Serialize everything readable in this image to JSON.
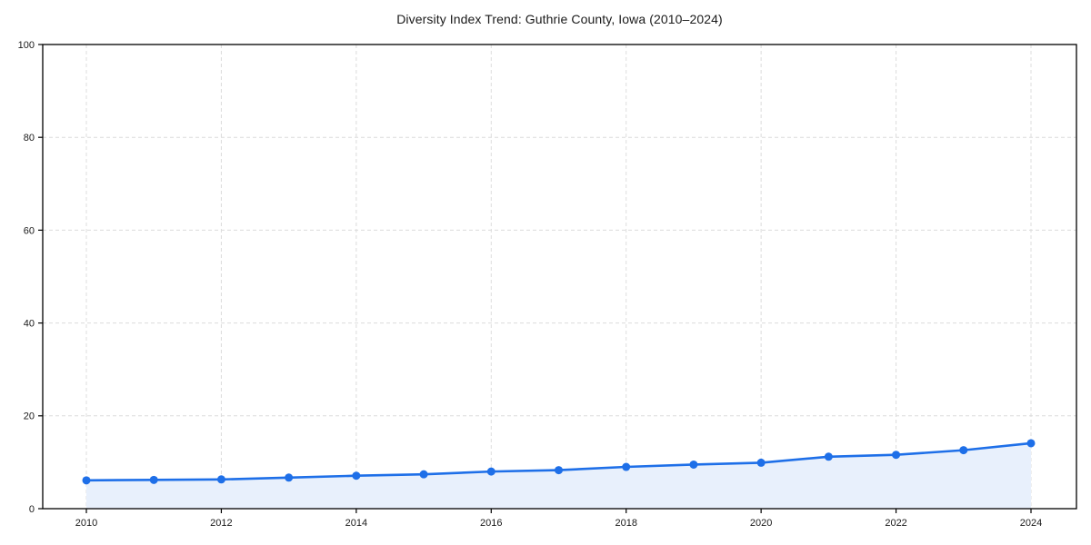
{
  "chart_data": {
    "type": "line",
    "area_fill": true,
    "title": "Diversity Index Trend: Guthrie County, Iowa (2010–2024)",
    "x": [
      2010,
      2011,
      2012,
      2013,
      2014,
      2015,
      2016,
      2017,
      2018,
      2019,
      2020,
      2021,
      2022,
      2023,
      2024
    ],
    "series": [
      {
        "name": "Diversity Index",
        "values": [
          6.1,
          6.2,
          6.3,
          6.7,
          7.1,
          7.4,
          8.0,
          8.3,
          9.0,
          9.5,
          9.9,
          11.2,
          11.6,
          12.6,
          14.1
        ]
      }
    ],
    "xlabel": "",
    "ylabel": "",
    "ylim": [
      0,
      100
    ],
    "yticks": [
      0,
      20,
      40,
      60,
      80,
      100
    ],
    "xticks": [
      2010,
      2012,
      2014,
      2016,
      2018,
      2020,
      2022,
      2024
    ],
    "grid": true,
    "grid_style": "dashed",
    "legend_position": "none",
    "colors": {
      "line": "#1e6fe8",
      "marker": "#1e6fe8",
      "area": "#e8f0fc",
      "grid": "#dcdcdc",
      "axis": "#000000",
      "text": "#1a1a1a"
    }
  }
}
